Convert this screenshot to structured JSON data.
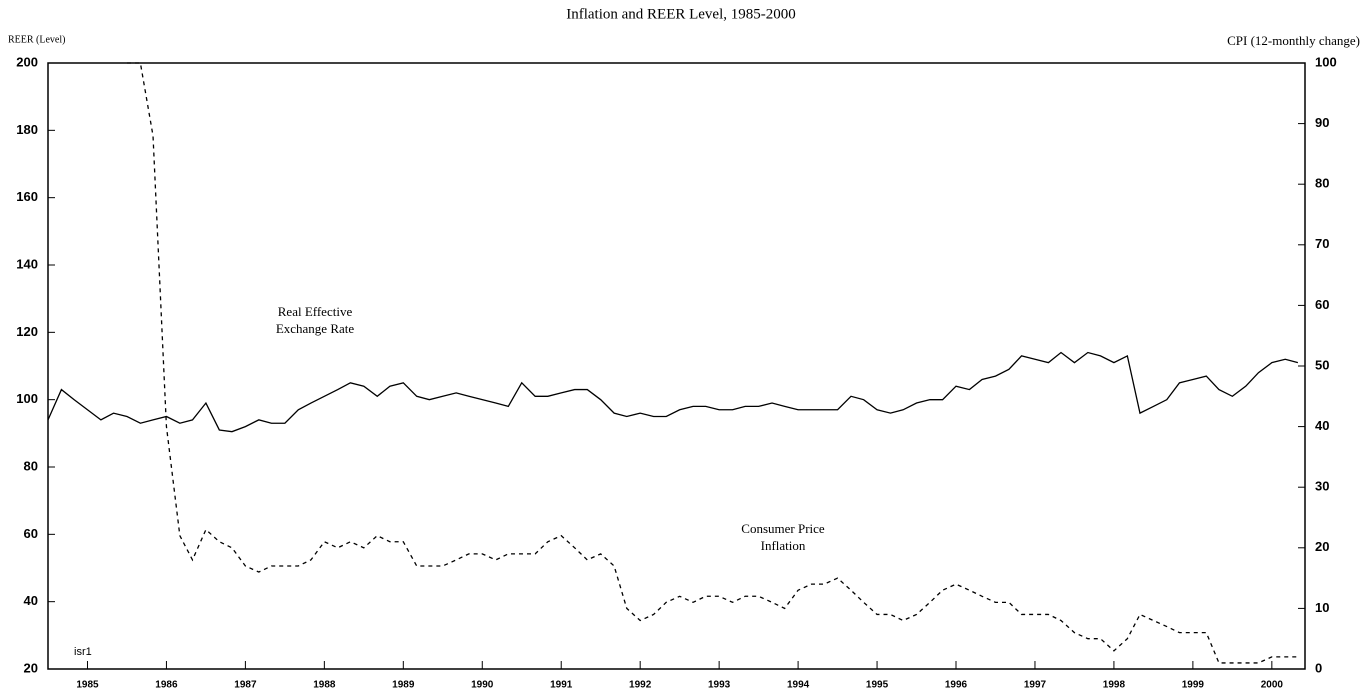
{
  "chart_data": {
    "type": "line",
    "title": "Inflation and REER Level, 1985-2000",
    "y_label": "REER (Level)",
    "y2_label": "CPI (12-monthly change)",
    "annotations": [
      "Real Effective",
      "Exchange Rate",
      "Consumer Price",
      "Inflation",
      "isr1"
    ],
    "x": [
      1985.0,
      1985.17,
      1985.33,
      1985.5,
      1985.67,
      1985.83,
      1986.0,
      1986.17,
      1986.33,
      1986.5,
      1986.67,
      1986.83,
      1987.0,
      1987.17,
      1987.33,
      1987.5,
      1987.67,
      1987.83,
      1988.0,
      1988.17,
      1988.33,
      1988.5,
      1988.67,
      1988.83,
      1989.0,
      1989.17,
      1989.33,
      1989.5,
      1989.67,
      1989.83,
      1990.0,
      1990.17,
      1990.33,
      1990.5,
      1990.67,
      1990.83,
      1991.0,
      1991.17,
      1991.33,
      1991.5,
      1991.67,
      1991.83,
      1992.0,
      1992.17,
      1992.33,
      1992.5,
      1992.67,
      1992.83,
      1993.0,
      1993.17,
      1993.33,
      1993.5,
      1993.67,
      1993.83,
      1994.0,
      1994.17,
      1994.33,
      1994.5,
      1994.67,
      1994.83,
      1995.0,
      1995.17,
      1995.33,
      1995.5,
      1995.67,
      1995.83,
      1996.0,
      1996.17,
      1996.33,
      1996.5,
      1996.67,
      1996.83,
      1997.0,
      1997.17,
      1997.33,
      1997.5,
      1997.67,
      1997.83,
      1998.0,
      1998.17,
      1998.33,
      1998.5,
      1998.67,
      1998.83,
      1999.0,
      1999.17,
      1999.33,
      1999.5,
      1999.67,
      1999.83,
      2000.0,
      2000.17,
      2000.33,
      2000.5,
      2000.67,
      2000.83
    ],
    "series": [
      {
        "color": "#000000",
        "dash": false,
        "values": [
          94,
          103,
          100,
          97,
          94,
          96,
          95,
          93,
          94,
          95,
          93,
          94,
          99,
          91,
          90.5,
          92,
          94,
          93,
          93,
          97,
          99,
          101,
          103,
          105,
          104,
          101,
          104,
          105,
          101,
          100,
          101,
          102,
          101,
          100,
          99,
          98,
          105,
          101,
          101,
          102,
          103,
          103,
          100,
          96,
          95,
          96,
          95,
          95,
          97,
          98,
          98,
          97,
          97,
          98,
          98,
          99,
          98,
          97,
          97,
          97,
          97,
          101,
          100,
          97,
          96,
          97,
          99,
          100,
          100,
          104,
          103,
          106,
          107,
          109,
          113,
          112,
          111,
          114,
          111,
          114,
          113,
          111,
          113,
          96,
          98,
          100,
          105,
          106,
          107,
          103,
          101,
          104,
          108,
          111,
          112,
          111
        ]
      },
      {
        "color": "#000000",
        "dash": true,
        "axis": "y2",
        "values": [
          null,
          null,
          null,
          null,
          null,
          null,
          100,
          100,
          88,
          40,
          22,
          18,
          23,
          21,
          20,
          17,
          16,
          17,
          17,
          17,
          18,
          21,
          20,
          21,
          20,
          22,
          21,
          21,
          17,
          17,
          17,
          18,
          19,
          19,
          18,
          19,
          19,
          19,
          21,
          22,
          20,
          18,
          19,
          17,
          10,
          8,
          9,
          11,
          12,
          11,
          12,
          12,
          11,
          12,
          12,
          11,
          10,
          13,
          14,
          14,
          15,
          13,
          11,
          9,
          9,
          8,
          9,
          11,
          13,
          14,
          13,
          12,
          11,
          11,
          9,
          9,
          9,
          8,
          6,
          5,
          5,
          3,
          5,
          9,
          8,
          7,
          6,
          6,
          6,
          1,
          1,
          1,
          1,
          2,
          2,
          2
        ]
      }
    ],
    "xlim": [
      1985,
      2000.92
    ],
    "xticks": [
      {
        "value": 1985.5,
        "label": "1985"
      },
      {
        "value": 1986.5,
        "label": "1986"
      },
      {
        "value": 1987.5,
        "label": "1987"
      },
      {
        "value": 1988.5,
        "label": "1988"
      },
      {
        "value": 1989.5,
        "label": "1989"
      },
      {
        "value": 1990.5,
        "label": "1990"
      },
      {
        "value": 1991.5,
        "label": "1991"
      },
      {
        "value": 1992.5,
        "label": "1992"
      },
      {
        "value": 1993.5,
        "label": "1993"
      },
      {
        "value": 1994.5,
        "label": "1994"
      },
      {
        "value": 1995.5,
        "label": "1995"
      },
      {
        "value": 1996.5,
        "label": "1996"
      },
      {
        "value": 1997.5,
        "label": "1997"
      },
      {
        "value": 1998.5,
        "label": "1998"
      },
      {
        "value": 1999.5,
        "label": "1999"
      },
      {
        "value": 2000.5,
        "label": "2000"
      }
    ],
    "ylim": [
      20,
      200
    ],
    "yticks": [
      20,
      40,
      60,
      80,
      100,
      120,
      140,
      160,
      180,
      200
    ],
    "y2lim": [
      0,
      100
    ],
    "y2ticks": [
      0,
      10,
      20,
      30,
      40,
      50,
      60,
      70,
      80,
      90,
      100
    ],
    "grid": false
  }
}
